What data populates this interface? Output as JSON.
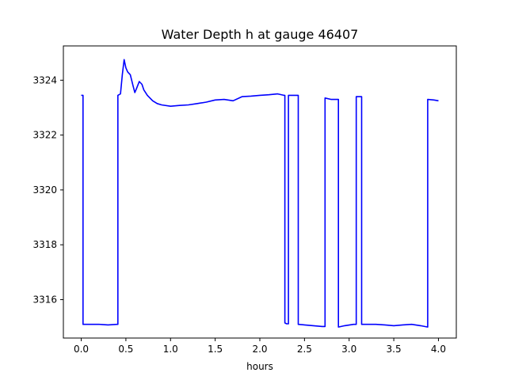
{
  "chart_data": {
    "type": "line",
    "title": "Water Depth h at gauge 46407",
    "xlabel": "hours",
    "ylabel": "",
    "xlim": [
      -0.2,
      4.2
    ],
    "ylim": [
      3314.6,
      3325.25
    ],
    "xticks": [
      0.0,
      0.5,
      1.0,
      1.5,
      2.0,
      2.5,
      3.0,
      3.5,
      4.0
    ],
    "xtick_labels": [
      "0.0",
      "0.5",
      "1.0",
      "1.5",
      "2.0",
      "2.5",
      "3.0",
      "3.5",
      "4.0"
    ],
    "yticks": [
      3316,
      3318,
      3320,
      3322,
      3324
    ],
    "ytick_labels": [
      "3316",
      "3318",
      "3320",
      "3322",
      "3324"
    ],
    "grid": false,
    "series": [
      {
        "color": "#0000ff",
        "x": [
          0.0,
          0.02,
          0.02,
          0.1,
          0.2,
          0.3,
          0.4,
          0.41,
          0.41,
          0.44,
          0.46,
          0.48,
          0.5,
          0.52,
          0.55,
          0.58,
          0.6,
          0.62,
          0.65,
          0.68,
          0.7,
          0.74,
          0.8,
          0.85,
          0.9,
          1.0,
          1.1,
          1.2,
          1.3,
          1.4,
          1.5,
          1.6,
          1.7,
          1.8,
          1.9,
          2.0,
          2.1,
          2.2,
          2.27,
          2.28,
          2.28,
          2.3,
          2.32,
          2.32,
          2.43,
          2.43,
          2.5,
          2.6,
          2.7,
          2.73,
          2.73,
          2.8,
          2.88,
          2.88,
          2.95,
          3.05,
          3.08,
          3.08,
          3.14,
          3.14,
          3.2,
          3.3,
          3.4,
          3.5,
          3.6,
          3.7,
          3.8,
          3.88,
          3.88,
          3.95,
          4.0
        ],
        "y": [
          3323.45,
          3323.45,
          3315.1,
          3315.1,
          3315.1,
          3315.08,
          3315.1,
          3315.1,
          3323.45,
          3323.5,
          3324.2,
          3324.75,
          3324.45,
          3324.3,
          3324.2,
          3323.8,
          3323.55,
          3323.7,
          3323.95,
          3323.85,
          3323.65,
          3323.45,
          3323.25,
          3323.15,
          3323.1,
          3323.05,
          3323.08,
          3323.1,
          3323.15,
          3323.2,
          3323.28,
          3323.3,
          3323.25,
          3323.4,
          3323.42,
          3323.45,
          3323.47,
          3323.5,
          3323.45,
          3323.45,
          3315.15,
          3315.12,
          3315.12,
          3323.45,
          3323.45,
          3315.1,
          3315.08,
          3315.05,
          3315.02,
          3315.02,
          3323.35,
          3323.3,
          3323.3,
          3315.0,
          3315.05,
          3315.1,
          3315.1,
          3323.4,
          3323.4,
          3315.1,
          3315.1,
          3315.1,
          3315.08,
          3315.05,
          3315.08,
          3315.1,
          3315.05,
          3315.0,
          3323.3,
          3323.28,
          3323.25
        ]
      }
    ]
  }
}
